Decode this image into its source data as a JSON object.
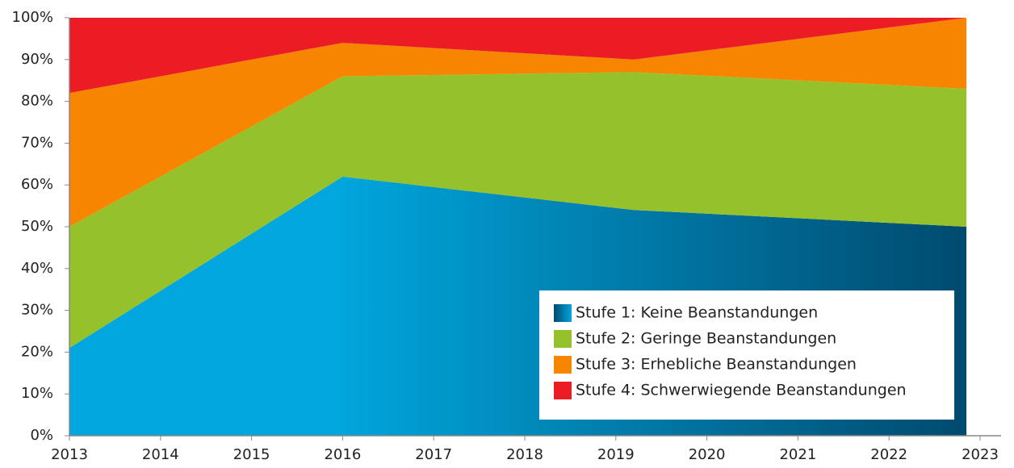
{
  "chart_data": {
    "type": "area",
    "stacked": true,
    "x": [
      2013,
      2016,
      2019.2,
      2022.85
    ],
    "series": [
      {
        "name": "Stufe 1: Keine Beanstandungen",
        "color": "#00a6dd",
        "gradient_end": "#004a6e",
        "values": [
          21,
          62,
          54,
          50
        ]
      },
      {
        "name": "Stufe 2: Geringe Beanstandungen",
        "color": "#95c12b",
        "values": [
          29,
          24,
          33,
          33
        ]
      },
      {
        "name": "Stufe 3: Erhebliche Beanstandungen",
        "color": "#f78500",
        "values": [
          32,
          8,
          3,
          17
        ]
      },
      {
        "name": "Stufe 4: Schwerwiegende Beanstandungen",
        "color": "#ec1c24",
        "values": [
          18,
          6,
          10,
          0
        ]
      }
    ],
    "xlim": [
      2013,
      2023
    ],
    "xticks": [
      2013,
      2014,
      2015,
      2016,
      2017,
      2018,
      2019,
      2020,
      2021,
      2022,
      2023
    ],
    "ylim": [
      0,
      100
    ],
    "yticks": [
      {
        "value": 0,
        "label": "0%"
      },
      {
        "value": 10,
        "label": "10%"
      },
      {
        "value": 20,
        "label": "20%"
      },
      {
        "value": 30,
        "label": "30%"
      },
      {
        "value": 40,
        "label": "40%"
      },
      {
        "value": 50,
        "label": "50%"
      },
      {
        "value": 60,
        "label": "60%"
      },
      {
        "value": 70,
        "label": "70%"
      },
      {
        "value": 80,
        "label": "80%"
      },
      {
        "value": 90,
        "label": "90%"
      },
      {
        "value": 100,
        "label": "100%"
      }
    ],
    "legend": "lower right"
  }
}
